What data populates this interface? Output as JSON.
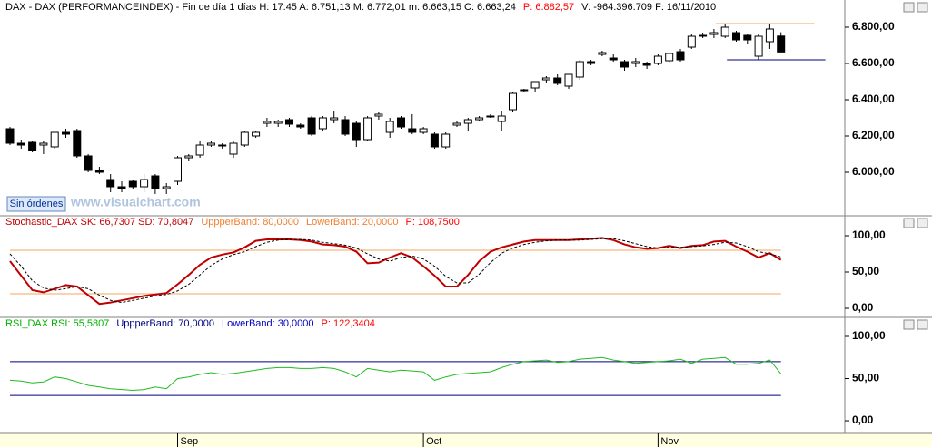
{
  "chart_data": [
    {
      "type": "candlestick",
      "header": [
        {
          "text": "DAX - DAX (PERFORMANCEINDEX) - Fin de día 1 días  H: 17:45  A: 6.751,13  M: 6.772,01  m: 6.663,15  C: 6.663,24",
          "color": "#000000"
        },
        {
          "text": "P: 6.882,57",
          "color": "#ff0000"
        },
        {
          "text": "V: -964.396.709  F: 16/11/2010",
          "color": "#000000"
        }
      ],
      "categories": [
        null,
        null,
        null,
        null,
        null,
        null,
        null,
        null,
        null,
        null,
        null,
        null,
        null,
        null,
        null,
        "Sep",
        null,
        null,
        null,
        null,
        null,
        null,
        null,
        null,
        null,
        null,
        null,
        null,
        null,
        null,
        null,
        null,
        null,
        null,
        null,
        null,
        null,
        "Oct",
        null,
        null,
        null,
        null,
        null,
        null,
        null,
        null,
        null,
        null,
        null,
        null,
        null,
        null,
        null,
        null,
        null,
        null,
        null,
        null,
        "Nov",
        null,
        null,
        null,
        null,
        null,
        null,
        null,
        null,
        null,
        null,
        null
      ],
      "open": [
        6240,
        6160,
        6165,
        6150,
        6140,
        6220,
        6230,
        6090,
        6010,
        5960,
        5920,
        5950,
        5920,
        5980,
        5910,
        5950,
        6080,
        6095,
        6150,
        6150,
        6100,
        6150,
        6200,
        6270,
        6270,
        6290,
        6260,
        6300,
        6240,
        6290,
        6290,
        6270,
        6180,
        6310,
        6220,
        6300,
        6240,
        6220,
        6210,
        6140,
        6260,
        6270,
        6290,
        6310,
        6280,
        6345,
        6450,
        6465,
        6510,
        6520,
        6475,
        6525,
        6610,
        6650,
        6630,
        6610,
        6600,
        6600,
        6600,
        6615,
        6665,
        6690,
        6750,
        6760,
        6750,
        6770,
        6755,
        6640,
        6720,
        6751.13
      ],
      "high": [
        6250,
        6180,
        6170,
        6170,
        6220,
        6240,
        6240,
        6100,
        6030,
        5990,
        5950,
        5960,
        5990,
        5990,
        5940,
        6090,
        6100,
        6170,
        6170,
        6160,
        6170,
        6230,
        6230,
        6300,
        6290,
        6300,
        6270,
        6310,
        6310,
        6340,
        6310,
        6280,
        6310,
        6330,
        6300,
        6310,
        6320,
        6250,
        6220,
        6220,
        6280,
        6300,
        6310,
        6320,
        6340,
        6440,
        6460,
        6500,
        6530,
        6540,
        6540,
        6620,
        6620,
        6670,
        6650,
        6620,
        6630,
        6610,
        6650,
        6660,
        6680,
        6760,
        6770,
        6790,
        6820,
        6780,
        6760,
        6760,
        6820,
        6772.01
      ],
      "low": [
        6150,
        6130,
        6110,
        6100,
        6130,
        6190,
        6080,
        6000,
        5990,
        5890,
        5890,
        5910,
        5890,
        5880,
        5880,
        5930,
        6060,
        6080,
        6140,
        6130,
        6080,
        6140,
        6190,
        6250,
        6250,
        6250,
        6240,
        6200,
        6230,
        6270,
        6200,
        6140,
        6170,
        6290,
        6190,
        6240,
        6210,
        6210,
        6130,
        6130,
        6250,
        6230,
        6280,
        6300,
        6230,
        6330,
        6440,
        6440,
        6490,
        6480,
        6460,
        6510,
        6590,
        6640,
        6610,
        6560,
        6580,
        6570,
        6590,
        6600,
        6610,
        6680,
        6740,
        6740,
        6740,
        6720,
        6710,
        6620,
        6680,
        6663.15
      ],
      "close": [
        6160,
        6150,
        6120,
        6160,
        6220,
        6210,
        6090,
        6010,
        6000,
        5920,
        5910,
        5920,
        5960,
        5910,
        5920,
        6080,
        6090,
        6150,
        6160,
        6145,
        6160,
        6220,
        6220,
        6280,
        6280,
        6265,
        6250,
        6210,
        6300,
        6300,
        6210,
        6180,
        6300,
        6320,
        6280,
        6250,
        6220,
        6240,
        6140,
        6210,
        6270,
        6290,
        6300,
        6310,
        6310,
        6435,
        6455,
        6500,
        6520,
        6490,
        6540,
        6610,
        6600,
        6660,
        6620,
        6580,
        6610,
        6590,
        6640,
        6655,
        6620,
        6750,
        6755,
        6770,
        6800,
        6730,
        6730,
        6750,
        6790,
        6663.24
      ],
      "up_color": "#ffffff",
      "down_color": "#000000",
      "reference_lines": [
        {
          "value": 6820,
          "color": "#f4a460"
        },
        {
          "value": 6620,
          "color": "#000080"
        }
      ],
      "ylim": [
        5765,
        6860
      ],
      "yticks": [
        {
          "value": 6000,
          "label": "6.000,00"
        },
        {
          "value": 6200,
          "label": "6.200,00"
        },
        {
          "value": 6400,
          "label": "6.400,00"
        },
        {
          "value": 6600,
          "label": "6.600,00"
        },
        {
          "value": 6800,
          "label": "6.800,00"
        }
      ]
    },
    {
      "type": "line",
      "header": [
        {
          "text": "Stochastic_DAX  SK: 66,7307  SD: 70,8047",
          "color": "#c00000"
        },
        {
          "text": "UppperBand: 80,0000",
          "color": "#f08030"
        },
        {
          "text": "LowerBand: 20,0000",
          "color": "#f08030"
        },
        {
          "text": "P: 108,7500",
          "color": "#ff0000"
        }
      ],
      "series": [
        {
          "color": "#c00000",
          "values": [
            65,
            45,
            25,
            22,
            27,
            32,
            30,
            18,
            6,
            8,
            11,
            14,
            17,
            19,
            21,
            33,
            46,
            60,
            70,
            74,
            77,
            84,
            93,
            95,
            95,
            95,
            94,
            92,
            88,
            87,
            85,
            78,
            62,
            63,
            70,
            76,
            70,
            58,
            45,
            30,
            30,
            46,
            65,
            78,
            84,
            88,
            92,
            94,
            94,
            94,
            94,
            95,
            96,
            97,
            94,
            88,
            84,
            82,
            83,
            86,
            83,
            86,
            87,
            92,
            93,
            85,
            78,
            70,
            76,
            66.73
          ]
        },
        {
          "color": "#000000",
          "dashed": true,
          "values": [
            75,
            58,
            38,
            28,
            25,
            27,
            30,
            27,
            18,
            11,
            8,
            11,
            14,
            17,
            19,
            24,
            33,
            46,
            59,
            68,
            74,
            78,
            85,
            91,
            94,
            95,
            95,
            94,
            91,
            89,
            87,
            83,
            75,
            68,
            65,
            70,
            72,
            68,
            58,
            44,
            35,
            35,
            47,
            63,
            76,
            83,
            88,
            91,
            93,
            94,
            94,
            94,
            95,
            96,
            96,
            93,
            89,
            85,
            83,
            84,
            84,
            85,
            86,
            88,
            91,
            90,
            85,
            78,
            75,
            70.8
          ]
        }
      ],
      "bands": [
        80,
        20
      ],
      "band_color": "#f4a460",
      "ylim": [
        -10,
        110
      ],
      "yticks": [
        {
          "value": 0,
          "label": "0,00"
        },
        {
          "value": 50,
          "label": "50,00"
        },
        {
          "value": 100,
          "label": "100,00"
        }
      ]
    },
    {
      "type": "line",
      "header": [
        {
          "text": "RSI_DAX  RSI: 55,5807",
          "color": "#00b000"
        },
        {
          "text": "UppperBand: 70,0000",
          "color": "#000080"
        },
        {
          "text": "LowerBand: 30,0000",
          "color": "#0000c0"
        },
        {
          "text": "P: 122,3404",
          "color": "#ff0000"
        }
      ],
      "series": [
        {
          "color": "#22bb22",
          "values": [
            48,
            47,
            45,
            46,
            52,
            50,
            46,
            42,
            40,
            38,
            37,
            36,
            37,
            40,
            38,
            50,
            52,
            55,
            57,
            55,
            56,
            58,
            60,
            62,
            63,
            63,
            62,
            62,
            63,
            62,
            58,
            52,
            62,
            60,
            58,
            60,
            59,
            58,
            48,
            52,
            55,
            56,
            57,
            58,
            63,
            67,
            70,
            71,
            72,
            69,
            70,
            73,
            74,
            75,
            72,
            70,
            68,
            69,
            70,
            71,
            73,
            68,
            73,
            74,
            75,
            67,
            67,
            68,
            72,
            55.58
          ]
        }
      ],
      "bands": [
        70,
        30
      ],
      "band_color": "#000080",
      "ylim": [
        -15,
        108.6
      ],
      "yticks": [
        {
          "value": 0,
          "label": "0,00"
        },
        {
          "value": 50,
          "label": "50,00"
        },
        {
          "value": 100,
          "label": "100,00"
        }
      ]
    }
  ],
  "button": "Sin órdenes",
  "watermark": "www.visualchart.com"
}
